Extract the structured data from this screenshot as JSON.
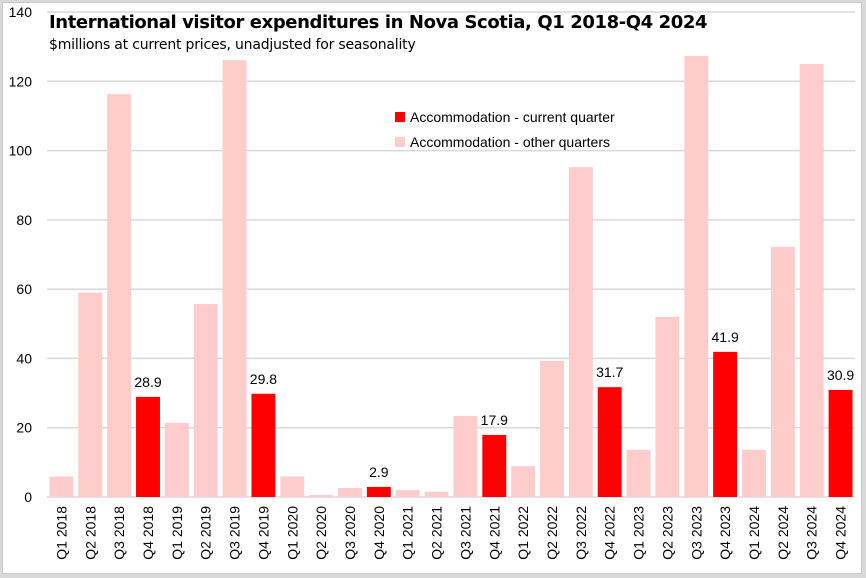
{
  "chart_data": {
    "type": "bar",
    "title": "International visitor expenditures in Nova Scotia, Q1 2018-Q4 2024",
    "subtitle": "$millions at current prices, unadjusted for seasonality",
    "xlabel": "",
    "ylabel": "",
    "ylim": [
      0,
      140
    ],
    "yticks": [
      0,
      20,
      40,
      60,
      80,
      100,
      120,
      140
    ],
    "grid": true,
    "legend_position": "top-center",
    "categories": [
      "Q1 2018",
      "Q2 2018",
      "Q3 2018",
      "Q4 2018",
      "Q1 2019",
      "Q2 2019",
      "Q3 2019",
      "Q4 2019",
      "Q1 2020",
      "Q2 2020",
      "Q3 2020",
      "Q4 2020",
      "Q1 2021",
      "Q2 2021",
      "Q3 2021",
      "Q4 2021",
      "Q1 2022",
      "Q2 2022",
      "Q3 2022",
      "Q4 2022",
      "Q1 2023",
      "Q2 2023",
      "Q3 2023",
      "Q4 2023",
      "Q1 2024",
      "Q2 2024",
      "Q3 2024",
      "Q4 2024"
    ],
    "series": [
      {
        "name": "Accommodation - current quarter",
        "color": "#ff0000",
        "values": [
          null,
          null,
          null,
          28.9,
          null,
          null,
          null,
          29.8,
          null,
          null,
          null,
          2.9,
          null,
          null,
          null,
          17.9,
          null,
          null,
          null,
          31.7,
          null,
          null,
          null,
          41.9,
          null,
          null,
          null,
          30.9
        ],
        "data_labels": true
      },
      {
        "name": "Accommodation - other quarters",
        "color": "#ffcccc",
        "values": [
          5.9,
          59.0,
          116.3,
          null,
          21.4,
          55.7,
          126.1,
          null,
          5.9,
          0.6,
          2.6,
          null,
          2.0,
          1.5,
          23.4,
          null,
          8.9,
          39.3,
          95.2,
          null,
          13.6,
          52.0,
          127.3,
          null,
          13.6,
          72.2,
          125.0,
          null
        ],
        "data_labels": false
      }
    ]
  }
}
